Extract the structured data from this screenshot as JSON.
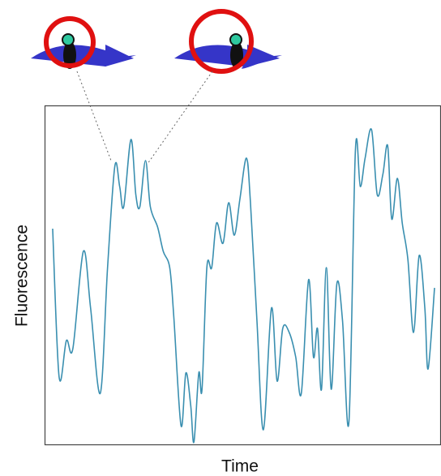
{
  "chart_data": {
    "type": "line",
    "xlabel": "Time",
    "ylabel": "Fluorescence",
    "x": [
      10,
      18,
      27,
      35,
      48,
      57,
      69,
      78,
      87,
      93,
      98,
      107,
      113,
      118,
      125,
      131,
      140,
      147,
      155,
      160,
      169,
      175,
      181,
      185,
      191,
      195,
      201,
      207,
      213,
      221,
      228,
      235,
      242,
      250,
      255,
      263,
      271,
      281,
      288,
      295,
      303,
      311,
      318,
      327,
      333,
      338,
      343,
      349,
      355,
      362,
      369,
      377,
      385,
      391,
      397,
      405,
      412,
      419,
      425,
      430,
      437,
      443,
      450,
      457,
      464,
      471,
      475,
      483
    ],
    "values": [
      266,
      83,
      128,
      118,
      238,
      168,
      63,
      218,
      343,
      318,
      293,
      376,
      308,
      293,
      350,
      293,
      268,
      238,
      218,
      158,
      23,
      88,
      48,
      3,
      88,
      68,
      218,
      218,
      273,
      248,
      298,
      258,
      303,
      353,
      298,
      153,
      18,
      168,
      78,
      143,
      138,
      108,
      63,
      203,
      108,
      143,
      68,
      218,
      68,
      198,
      153,
      28,
      363,
      318,
      353,
      388,
      308,
      333,
      368,
      278,
      328,
      273,
      228,
      138,
      233,
      168,
      93,
      193
    ],
    "color": "#3a8fb0",
    "xlim": [
      0,
      490
    ],
    "ylim": [
      0,
      418
    ]
  }
}
